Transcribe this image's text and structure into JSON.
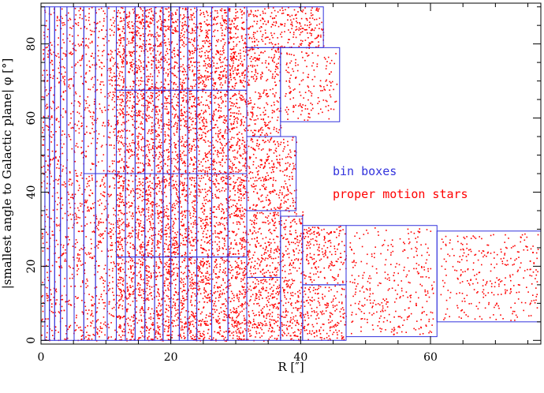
{
  "chart_data": {
    "type": "scatter",
    "xlabel": "R [″]",
    "ylabel": "|smallest angle to Galactic plane| φ [°]",
    "xlim": [
      0,
      77
    ],
    "ylim": [
      -1,
      91
    ],
    "x_ticks": [
      0,
      20,
      40,
      60
    ],
    "y_ticks": [
      0,
      20,
      40,
      60,
      80
    ],
    "grid": false,
    "colors": {
      "boxes": "#3333dd",
      "stars": "#ff0000"
    },
    "legend": {
      "placement": "center-right",
      "entries": [
        {
          "label": "bin boxes",
          "color": "#3333dd"
        },
        {
          "label": "proper motion stars",
          "color": "#ff0000"
        }
      ]
    },
    "columns": [
      {
        "x0": 0.0,
        "x1": 0.6,
        "splits": []
      },
      {
        "x0": 0.6,
        "x1": 1.3,
        "splits": []
      },
      {
        "x0": 1.3,
        "x1": 2.1,
        "splits": []
      },
      {
        "x0": 2.1,
        "x1": 3.0,
        "splits": []
      },
      {
        "x0": 3.0,
        "x1": 4.0,
        "splits": []
      },
      {
        "x0": 4.0,
        "x1": 5.1,
        "splits": []
      },
      {
        "x0": 5.1,
        "x1": 6.6,
        "splits": []
      },
      {
        "x0": 6.6,
        "x1": 8.4,
        "splits": [
          45
        ]
      },
      {
        "x0": 8.4,
        "x1": 10.2,
        "splits": [
          45
        ]
      },
      {
        "x0": 10.2,
        "x1": 11.6,
        "splits": [
          45
        ]
      },
      {
        "x0": 11.6,
        "x1": 13.0,
        "splits": [
          22.5,
          45,
          67.5
        ]
      },
      {
        "x0": 13.0,
        "x1": 14.5,
        "splits": [
          22.5,
          45,
          67.5
        ]
      },
      {
        "x0": 14.5,
        "x1": 16.0,
        "splits": [
          22.5,
          45,
          67.5
        ]
      },
      {
        "x0": 16.0,
        "x1": 17.5,
        "splits": [
          22.5,
          45,
          67.5
        ]
      },
      {
        "x0": 17.5,
        "x1": 18.8,
        "splits": [
          22.5,
          45,
          67.5
        ]
      },
      {
        "x0": 18.8,
        "x1": 20.0,
        "splits": [
          22.5,
          45,
          67.5
        ]
      },
      {
        "x0": 20.0,
        "x1": 21.3,
        "splits": [
          22.5,
          45,
          67.5
        ]
      },
      {
        "x0": 21.3,
        "x1": 22.6,
        "splits": [
          22.5,
          45,
          67.5
        ]
      },
      {
        "x0": 22.6,
        "x1": 24.0,
        "splits": [
          22.5,
          45,
          67.5
        ]
      },
      {
        "x0": 24.0,
        "x1": 26.3,
        "splits": [
          22.5,
          45,
          67.5
        ]
      },
      {
        "x0": 26.3,
        "x1": 28.8,
        "splits": [
          22.5,
          45,
          67.5
        ]
      },
      {
        "x0": 28.8,
        "x1": 31.7,
        "splits": [
          22.5,
          45,
          67.5
        ]
      }
    ],
    "outer_boxes": [
      {
        "x0": 31.7,
        "x1": 43.5,
        "y0": 79,
        "y1": 90
      },
      {
        "x0": 31.7,
        "x1": 36.9,
        "y0": 55,
        "y1": 79
      },
      {
        "x0": 36.9,
        "x1": 46.0,
        "y0": 59,
        "y1": 79
      },
      {
        "x0": 31.7,
        "x1": 39.3,
        "y0": 35,
        "y1": 55
      },
      {
        "x0": 31.7,
        "x1": 36.9,
        "y0": 17,
        "y1": 35
      },
      {
        "x0": 31.7,
        "x1": 36.9,
        "y0": 0,
        "y1": 17
      },
      {
        "x0": 36.9,
        "x1": 40.3,
        "y0": 0,
        "y1": 33.5
      },
      {
        "x0": 40.3,
        "x1": 47.0,
        "y0": 15,
        "y1": 31
      },
      {
        "x0": 40.3,
        "x1": 47.0,
        "y0": 0,
        "y1": 15
      },
      {
        "x0": 47.0,
        "x1": 61.0,
        "y0": 1,
        "y1": 31
      },
      {
        "x0": 61.0,
        "x1": 77.0,
        "y0": 5,
        "y1": 29.5
      }
    ],
    "star_regions": [
      {
        "x0": 0.0,
        "x1": 11.6,
        "y0": 0,
        "y1": 90,
        "count": 1300
      },
      {
        "x0": 11.6,
        "x1": 31.7,
        "y0": 0,
        "y1": 90,
        "count": 5200
      },
      {
        "x0": 31.7,
        "x1": 43.5,
        "y0": 79,
        "y1": 90,
        "count": 260
      },
      {
        "x0": 31.7,
        "x1": 36.9,
        "y0": 55,
        "y1": 79,
        "count": 240
      },
      {
        "x0": 37.5,
        "x1": 45.5,
        "y0": 59.5,
        "y1": 78,
        "count": 160
      },
      {
        "x0": 31.7,
        "x1": 39.3,
        "y0": 35,
        "y1": 55,
        "count": 300
      },
      {
        "x0": 31.7,
        "x1": 40.3,
        "y0": 0,
        "y1": 35,
        "count": 700
      },
      {
        "x0": 40.3,
        "x1": 47.0,
        "y0": 0,
        "y1": 31,
        "count": 380
      },
      {
        "x0": 47.5,
        "x1": 60.5,
        "y0": 1.5,
        "y1": 30.5,
        "count": 320
      },
      {
        "x0": 61.5,
        "x1": 76.5,
        "y0": 5.5,
        "y1": 29,
        "count": 300
      }
    ]
  }
}
